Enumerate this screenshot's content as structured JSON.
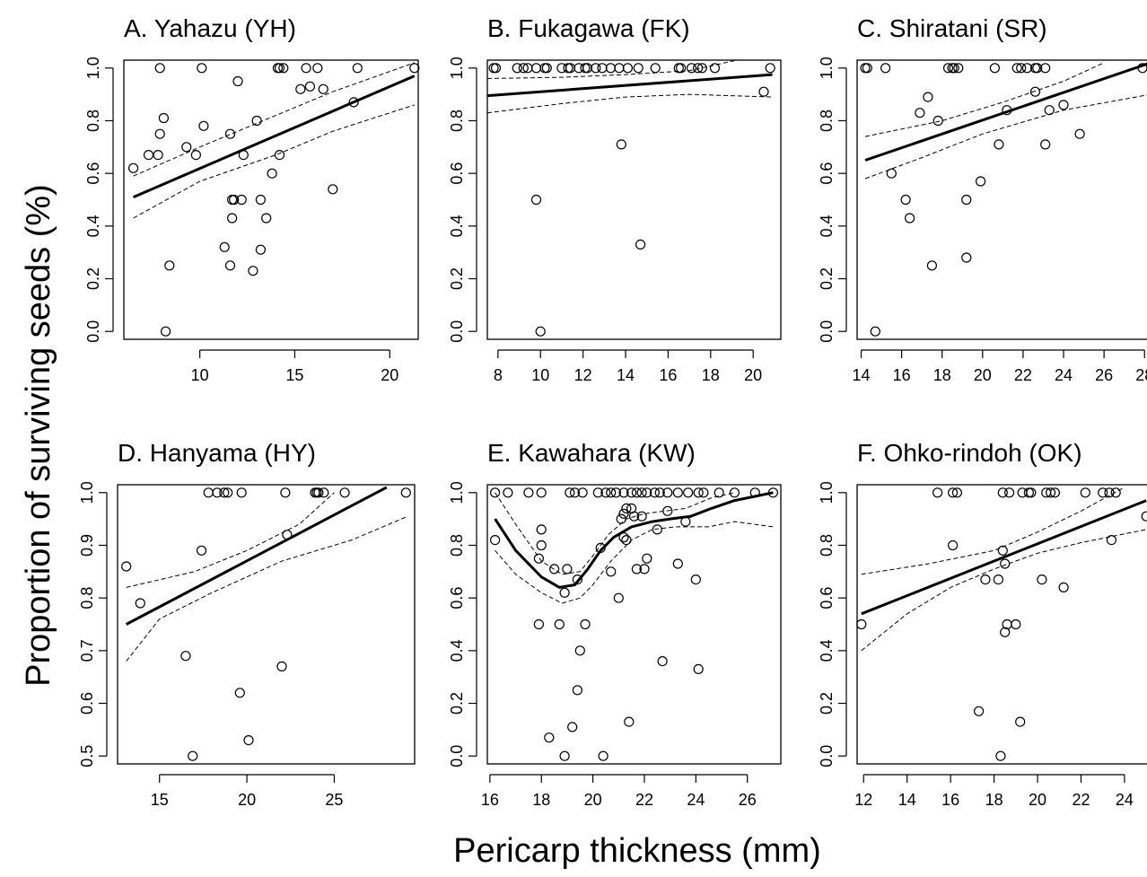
{
  "figure": {
    "ylabel": "Proportion of surviving seeds (%)",
    "xlabel": "Pericarp thickness (mm)"
  },
  "chart_data": [
    {
      "type": "scatter",
      "title": "A. Yahazu (YH)",
      "xlim": [
        6,
        21.5
      ],
      "ylim": [
        -0.03,
        1.03
      ],
      "xticks": [
        10,
        15,
        20
      ],
      "yticks": [
        0.0,
        0.2,
        0.4,
        0.6,
        0.8,
        1.0
      ],
      "points": [
        [
          6.5,
          0.62
        ],
        [
          7.3,
          0.67
        ],
        [
          7.8,
          0.67
        ],
        [
          7.9,
          0.75
        ],
        [
          8.1,
          0.81
        ],
        [
          7.9,
          1.0
        ],
        [
          10.1,
          1.0
        ],
        [
          8.2,
          0.0
        ],
        [
          8.4,
          0.25
        ],
        [
          9.3,
          0.7
        ],
        [
          9.8,
          0.67
        ],
        [
          10.2,
          0.78
        ],
        [
          11.3,
          0.32
        ],
        [
          11.6,
          0.75
        ],
        [
          11.6,
          0.25
        ],
        [
          11.7,
          0.5
        ],
        [
          11.8,
          0.5
        ],
        [
          11.7,
          0.43
        ],
        [
          12.0,
          0.95
        ],
        [
          12.2,
          0.5
        ],
        [
          12.3,
          0.67
        ],
        [
          12.8,
          0.23
        ],
        [
          13.0,
          0.8
        ],
        [
          13.2,
          0.5
        ],
        [
          13.2,
          0.31
        ],
        [
          13.5,
          0.43
        ],
        [
          13.8,
          0.6
        ],
        [
          14.2,
          0.67
        ],
        [
          14.1,
          1.0
        ],
        [
          14.2,
          1.0
        ],
        [
          14.4,
          1.0
        ],
        [
          15.6,
          1.0
        ],
        [
          16.2,
          1.0
        ],
        [
          15.3,
          0.92
        ],
        [
          15.8,
          0.93
        ],
        [
          16.5,
          0.92
        ],
        [
          17.0,
          0.54
        ],
        [
          18.1,
          0.87
        ],
        [
          18.3,
          1.0
        ],
        [
          21.3,
          1.0
        ]
      ],
      "fit": [
        [
          6.5,
          0.51
        ],
        [
          21.3,
          0.97
        ]
      ],
      "ci_upper": [
        [
          6.5,
          0.59
        ],
        [
          10,
          0.7
        ],
        [
          14,
          0.82
        ],
        [
          17,
          0.91
        ],
        [
          21.3,
          1.02
        ]
      ],
      "ci_lower": [
        [
          6.5,
          0.43
        ],
        [
          10,
          0.57
        ],
        [
          14,
          0.67
        ],
        [
          17,
          0.76
        ],
        [
          21.3,
          0.86
        ]
      ]
    },
    {
      "type": "scatter",
      "title": "B. Fukagawa (FK)",
      "xlim": [
        7.5,
        21.3
      ],
      "ylim": [
        -0.03,
        1.03
      ],
      "xticks": [
        8,
        10,
        12,
        14,
        16,
        18,
        20
      ],
      "yticks": [
        0.0,
        0.2,
        0.4,
        0.6,
        0.8,
        1.0
      ],
      "points": [
        [
          7.8,
          1.0
        ],
        [
          7.9,
          1.0
        ],
        [
          8.9,
          1.0
        ],
        [
          9.2,
          1.0
        ],
        [
          9.4,
          1.0
        ],
        [
          9.8,
          1.0
        ],
        [
          10.2,
          1.0
        ],
        [
          10.3,
          1.0
        ],
        [
          11.0,
          1.0
        ],
        [
          11.3,
          1.0
        ],
        [
          11.4,
          1.0
        ],
        [
          11.8,
          1.0
        ],
        [
          12.1,
          1.0
        ],
        [
          12.2,
          1.0
        ],
        [
          12.6,
          1.0
        ],
        [
          12.9,
          1.0
        ],
        [
          13.3,
          1.0
        ],
        [
          13.7,
          1.0
        ],
        [
          14.1,
          1.0
        ],
        [
          14.6,
          1.0
        ],
        [
          15.4,
          1.0
        ],
        [
          16.5,
          1.0
        ],
        [
          16.6,
          1.0
        ],
        [
          17.1,
          1.0
        ],
        [
          17.4,
          1.0
        ],
        [
          17.6,
          1.0
        ],
        [
          18.2,
          1.0
        ],
        [
          20.8,
          1.0
        ],
        [
          20.5,
          0.91
        ],
        [
          9.8,
          0.5
        ],
        [
          10.0,
          0.0
        ],
        [
          13.8,
          0.71
        ],
        [
          14.7,
          0.33
        ]
      ],
      "fit": [
        [
          7.5,
          0.895
        ],
        [
          20.9,
          0.975
        ]
      ],
      "ci_upper": [
        [
          7.5,
          0.96
        ],
        [
          11,
          0.965
        ],
        [
          14,
          0.975
        ],
        [
          17,
          0.99
        ],
        [
          20.9,
          1.06
        ]
      ],
      "ci_lower": [
        [
          7.5,
          0.83
        ],
        [
          11,
          0.865
        ],
        [
          14,
          0.89
        ],
        [
          17,
          0.9
        ],
        [
          20.9,
          0.89
        ]
      ]
    },
    {
      "type": "scatter",
      "title": "C. Shiratani (SR)",
      "xlim": [
        13.8,
        28.3
      ],
      "ylim": [
        -0.03,
        1.03
      ],
      "xticks": [
        14,
        16,
        18,
        20,
        22,
        24,
        26,
        28
      ],
      "yticks": [
        0.0,
        0.2,
        0.4,
        0.6,
        0.8,
        1.0
      ],
      "points": [
        [
          14.2,
          1.0
        ],
        [
          14.3,
          1.0
        ],
        [
          15.2,
          1.0
        ],
        [
          18.3,
          1.0
        ],
        [
          18.5,
          1.0
        ],
        [
          18.6,
          1.0
        ],
        [
          18.8,
          1.0
        ],
        [
          20.6,
          1.0
        ],
        [
          21.7,
          1.0
        ],
        [
          21.9,
          1.0
        ],
        [
          22.2,
          1.0
        ],
        [
          22.6,
          1.0
        ],
        [
          22.7,
          1.0
        ],
        [
          23.1,
          1.0
        ],
        [
          27.9,
          1.0
        ],
        [
          14.7,
          0.0
        ],
        [
          15.5,
          0.6
        ],
        [
          16.2,
          0.5
        ],
        [
          16.4,
          0.43
        ],
        [
          16.9,
          0.83
        ],
        [
          17.3,
          0.89
        ],
        [
          17.5,
          0.25
        ],
        [
          17.8,
          0.8
        ],
        [
          19.2,
          0.5
        ],
        [
          19.2,
          0.28
        ],
        [
          19.9,
          0.57
        ],
        [
          20.8,
          0.71
        ],
        [
          21.2,
          0.84
        ],
        [
          22.6,
          0.91
        ],
        [
          23.1,
          0.71
        ],
        [
          23.3,
          0.84
        ],
        [
          24.0,
          0.86
        ],
        [
          24.8,
          0.75
        ]
      ],
      "fit": [
        [
          14.2,
          0.65
        ],
        [
          28.3,
          1.02
        ]
      ],
      "ci_upper": [
        [
          14.2,
          0.74
        ],
        [
          18,
          0.8
        ],
        [
          21,
          0.87
        ],
        [
          24,
          0.95
        ],
        [
          26,
          1.02
        ]
      ],
      "ci_lower": [
        [
          14.2,
          0.58
        ],
        [
          17,
          0.66
        ],
        [
          20,
          0.75
        ],
        [
          24,
          0.84
        ],
        [
          28.3,
          0.9
        ]
      ]
    },
    {
      "type": "scatter",
      "title": "D. Hanyama (HY)",
      "xlim": [
        12.6,
        29.6
      ],
      "ylim": [
        0.485,
        1.015
      ],
      "xticks": [
        15,
        20,
        25
      ],
      "yticks": [
        0.5,
        0.6,
        0.7,
        0.8,
        0.9,
        1.0
      ],
      "points": [
        [
          13.1,
          0.86
        ],
        [
          13.9,
          0.79
        ],
        [
          16.5,
          0.69
        ],
        [
          16.9,
          0.5
        ],
        [
          17.4,
          0.89
        ],
        [
          17.8,
          1.0
        ],
        [
          18.3,
          1.0
        ],
        [
          18.7,
          1.0
        ],
        [
          18.9,
          1.0
        ],
        [
          19.7,
          1.0
        ],
        [
          19.6,
          0.62
        ],
        [
          20.1,
          0.53
        ],
        [
          22.0,
          0.67
        ],
        [
          22.2,
          1.0
        ],
        [
          22.3,
          0.92
        ],
        [
          23.9,
          1.0
        ],
        [
          24.0,
          1.0
        ],
        [
          24.1,
          1.0
        ],
        [
          24.4,
          1.0
        ],
        [
          25.6,
          1.0
        ],
        [
          29.1,
          1.0
        ]
      ],
      "fit": [
        [
          13.1,
          0.75
        ],
        [
          28.0,
          1.01
        ]
      ],
      "ci_upper": [
        [
          13.1,
          0.82
        ],
        [
          17,
          0.85
        ],
        [
          20,
          0.89
        ],
        [
          23,
          0.94
        ],
        [
          25,
          1.0
        ]
      ],
      "ci_lower": [
        [
          13.1,
          0.68
        ],
        [
          15,
          0.76
        ],
        [
          18,
          0.81
        ],
        [
          22,
          0.87
        ],
        [
          26,
          0.91
        ],
        [
          29.2,
          0.955
        ]
      ]
    },
    {
      "type": "scatter",
      "title": "E. Kawahara (KW)",
      "xlim": [
        15.9,
        27.3
      ],
      "ylim": [
        -0.03,
        1.03
      ],
      "xticks": [
        16,
        18,
        20,
        22,
        24,
        26
      ],
      "yticks": [
        0.0,
        0.2,
        0.4,
        0.6,
        0.8,
        1.0
      ],
      "points": [
        [
          16.2,
          1.0
        ],
        [
          16.7,
          1.0
        ],
        [
          17.5,
          1.0
        ],
        [
          18.0,
          1.0
        ],
        [
          19.1,
          1.0
        ],
        [
          19.3,
          1.0
        ],
        [
          19.6,
          1.0
        ],
        [
          20.2,
          1.0
        ],
        [
          20.5,
          1.0
        ],
        [
          20.7,
          1.0
        ],
        [
          20.9,
          1.0
        ],
        [
          21.2,
          1.0
        ],
        [
          21.5,
          1.0
        ],
        [
          21.7,
          1.0
        ],
        [
          21.9,
          1.0
        ],
        [
          22.1,
          1.0
        ],
        [
          22.4,
          1.0
        ],
        [
          22.6,
          1.0
        ],
        [
          22.9,
          1.0
        ],
        [
          23.3,
          1.0
        ],
        [
          23.7,
          1.0
        ],
        [
          24.1,
          1.0
        ],
        [
          24.3,
          1.0
        ],
        [
          24.9,
          1.0
        ],
        [
          25.5,
          1.0
        ],
        [
          26.3,
          1.0
        ],
        [
          27.0,
          1.0
        ],
        [
          16.2,
          0.82
        ],
        [
          17.9,
          0.5
        ],
        [
          17.9,
          0.75
        ],
        [
          18.0,
          0.8
        ],
        [
          18.0,
          0.86
        ],
        [
          18.3,
          0.07
        ],
        [
          18.5,
          0.71
        ],
        [
          18.7,
          0.5
        ],
        [
          18.9,
          0.0
        ],
        [
          18.9,
          0.62
        ],
        [
          19.0,
          0.71
        ],
        [
          19.2,
          0.11
        ],
        [
          19.4,
          0.67
        ],
        [
          19.4,
          0.25
        ],
        [
          19.5,
          0.4
        ],
        [
          19.7,
          0.5
        ],
        [
          20.3,
          0.79
        ],
        [
          20.4,
          0.0
        ],
        [
          20.7,
          0.7
        ],
        [
          21.0,
          0.6
        ],
        [
          21.1,
          0.9
        ],
        [
          21.2,
          0.83
        ],
        [
          21.2,
          0.92
        ],
        [
          21.3,
          0.82
        ],
        [
          21.3,
          0.94
        ],
        [
          21.4,
          0.13
        ],
        [
          21.5,
          0.94
        ],
        [
          21.6,
          0.91
        ],
        [
          21.7,
          0.71
        ],
        [
          21.9,
          0.91
        ],
        [
          22.0,
          0.71
        ],
        [
          22.1,
          0.75
        ],
        [
          22.5,
          0.86
        ],
        [
          22.7,
          0.36
        ],
        [
          22.9,
          0.93
        ],
        [
          23.3,
          0.73
        ],
        [
          23.6,
          0.89
        ],
        [
          24.0,
          0.67
        ],
        [
          24.1,
          0.33
        ]
      ],
      "fit": [
        [
          16.2,
          0.9
        ],
        [
          17.0,
          0.78
        ],
        [
          18.0,
          0.68
        ],
        [
          18.7,
          0.64
        ],
        [
          19.3,
          0.65
        ],
        [
          19.8,
          0.71
        ],
        [
          20.3,
          0.78
        ],
        [
          20.8,
          0.83
        ],
        [
          21.5,
          0.87
        ],
        [
          22.3,
          0.89
        ],
        [
          23.0,
          0.9
        ],
        [
          23.8,
          0.91
        ],
        [
          24.6,
          0.94
        ],
        [
          25.5,
          0.97
        ],
        [
          27.0,
          1.0
        ]
      ],
      "ci_upper": [
        [
          16.2,
          1.0
        ],
        [
          17.0,
          0.88
        ],
        [
          18.0,
          0.74
        ],
        [
          18.8,
          0.69
        ],
        [
          19.5,
          0.7
        ],
        [
          20.0,
          0.76
        ],
        [
          20.6,
          0.84
        ],
        [
          21.3,
          0.9
        ],
        [
          22.0,
          0.92
        ],
        [
          22.8,
          0.93
        ],
        [
          23.6,
          0.94
        ],
        [
          24.6,
          0.98
        ],
        [
          25.5,
          1.0
        ]
      ],
      "ci_lower": [
        [
          16.2,
          0.78
        ],
        [
          17.0,
          0.69
        ],
        [
          18.0,
          0.62
        ],
        [
          18.8,
          0.58
        ],
        [
          19.5,
          0.6
        ],
        [
          20.0,
          0.65
        ],
        [
          20.7,
          0.74
        ],
        [
          21.5,
          0.82
        ],
        [
          22.3,
          0.86
        ],
        [
          23.2,
          0.87
        ],
        [
          24.5,
          0.87
        ],
        [
          25.5,
          0.89
        ],
        [
          27.0,
          0.87
        ]
      ]
    },
    {
      "type": "scatter",
      "title": "F. Ohko-rindoh (OK)",
      "xlim": [
        11.7,
        25.2
      ],
      "ylim": [
        -0.03,
        1.03
      ],
      "xticks": [
        12,
        14,
        16,
        18,
        20,
        22,
        24
      ],
      "yticks": [
        0.0,
        0.2,
        0.4,
        0.6,
        0.8,
        1.0
      ],
      "points": [
        [
          11.9,
          0.5
        ],
        [
          15.4,
          1.0
        ],
        [
          16.1,
          1.0
        ],
        [
          16.3,
          1.0
        ],
        [
          16.1,
          0.8
        ],
        [
          17.3,
          0.17
        ],
        [
          17.6,
          0.67
        ],
        [
          18.2,
          0.67
        ],
        [
          18.3,
          0.0
        ],
        [
          18.4,
          0.78
        ],
        [
          18.5,
          0.73
        ],
        [
          18.5,
          0.47
        ],
        [
          18.6,
          0.5
        ],
        [
          18.4,
          1.0
        ],
        [
          18.7,
          1.0
        ],
        [
          19.0,
          0.5
        ],
        [
          19.2,
          0.13
        ],
        [
          19.3,
          1.0
        ],
        [
          19.6,
          1.0
        ],
        [
          19.7,
          1.0
        ],
        [
          20.2,
          0.67
        ],
        [
          20.4,
          1.0
        ],
        [
          20.6,
          1.0
        ],
        [
          20.8,
          1.0
        ],
        [
          21.2,
          0.64
        ],
        [
          22.2,
          1.0
        ],
        [
          23.0,
          1.0
        ],
        [
          23.3,
          1.0
        ],
        [
          23.6,
          1.0
        ],
        [
          23.4,
          0.82
        ],
        [
          25.0,
          0.91
        ]
      ],
      "fit": [
        [
          11.9,
          0.54
        ],
        [
          25.0,
          0.97
        ]
      ],
      "ci_upper": [
        [
          11.9,
          0.69
        ],
        [
          15,
          0.73
        ],
        [
          18,
          0.78
        ],
        [
          20,
          0.85
        ],
        [
          22,
          0.93
        ],
        [
          24,
          1.02
        ]
      ],
      "ci_lower": [
        [
          11.9,
          0.4
        ],
        [
          14,
          0.54
        ],
        [
          16,
          0.64
        ],
        [
          18,
          0.71
        ],
        [
          20,
          0.77
        ],
        [
          22,
          0.81
        ],
        [
          25,
          0.86
        ]
      ]
    }
  ]
}
